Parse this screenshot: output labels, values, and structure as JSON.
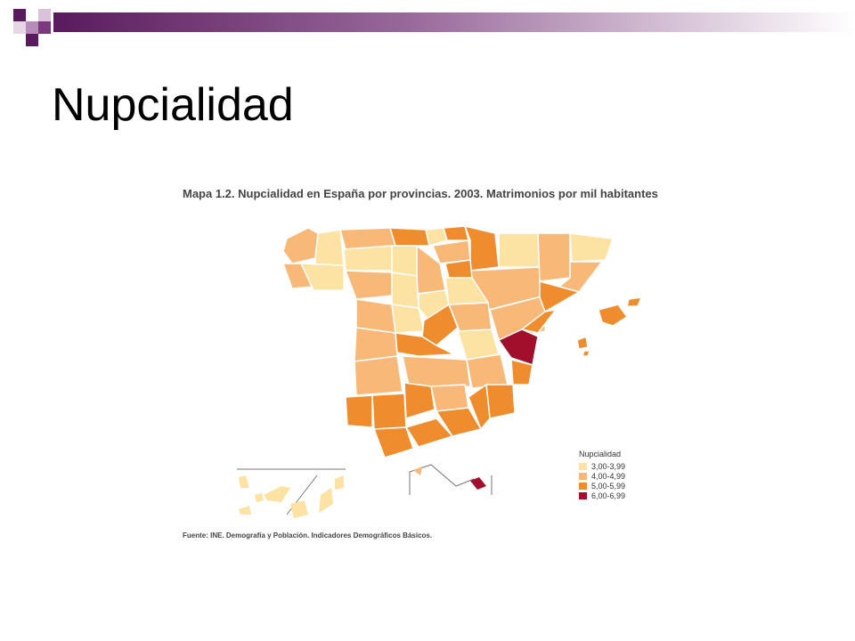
{
  "slide": {
    "title": "Nupcialidad"
  },
  "map": {
    "title": "Mapa 1.2. Nupcialidad en España por provincias. 2003. Matrimonios por mil habitantes",
    "source": "Fuente: INE. Demografía y Población. Indicadores Demográficos Básicos.",
    "legend": {
      "title": "Nupcialidad",
      "items": [
        {
          "label": "3,00-3,99",
          "color": "#fce3a4"
        },
        {
          "label": "4,00-4,99",
          "color": "#f8b878"
        },
        {
          "label": "5,00-5,99",
          "color": "#ef8c2e"
        },
        {
          "label": "6,00-6,99",
          "color": "#a0102d"
        }
      ]
    }
  },
  "decoration": {
    "accent": "#5a1a5e"
  }
}
